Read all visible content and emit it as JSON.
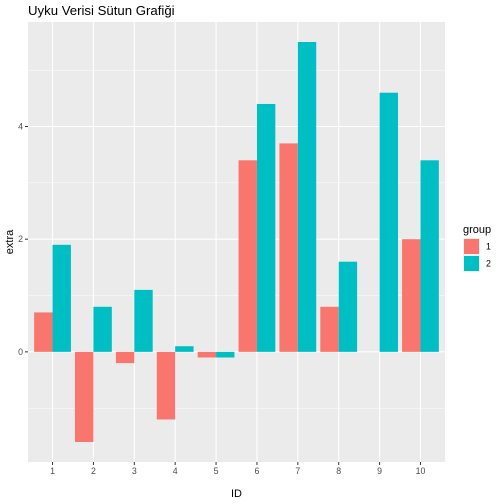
{
  "chart_data": {
    "type": "bar",
    "title": "Uyku Verisi Sütun Grafiği",
    "xlabel": "ID",
    "ylabel": "extra",
    "categories": [
      "1",
      "2",
      "3",
      "4",
      "5",
      "6",
      "7",
      "8",
      "9",
      "10"
    ],
    "series": [
      {
        "name": "1",
        "color": "#F8766D",
        "values": [
          0.7,
          -1.6,
          -0.2,
          -1.2,
          -0.1,
          3.4,
          3.7,
          0.8,
          0.0,
          2.0
        ]
      },
      {
        "name": "2",
        "color": "#00BFC4",
        "values": [
          1.9,
          0.8,
          1.1,
          0.1,
          -0.1,
          4.4,
          5.5,
          1.6,
          4.6,
          3.4
        ]
      }
    ],
    "yticks": [
      0,
      2,
      4
    ],
    "ytick_labels": [
      "0",
      "2",
      "4"
    ],
    "ylim": [
      -1.955,
      5.855
    ],
    "grid": true,
    "legend": {
      "title": "group",
      "position": "right"
    }
  }
}
